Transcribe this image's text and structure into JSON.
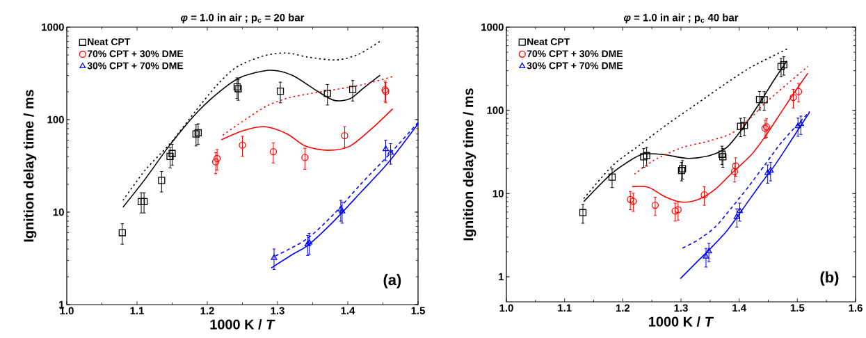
{
  "chart_data": [
    {
      "type": "scatter",
      "title": "*φ*  = 1.0 in air ; p$_{c}$ = 20 bar",
      "xlabel": "1000 K / *T*",
      "ylabel": "Ignition delay time / ms",
      "log": "y",
      "legend": "top left",
      "grid": false,
      "xlim": [
        1.0,
        1.5
      ],
      "ylim": [
        1,
        1000
      ],
      "xticks": [
        {
          "value": 1.0,
          "label": "1.0"
        },
        {
          "value": 1.1,
          "label": "1.1"
        },
        {
          "value": 1.2,
          "label": "1.2"
        },
        {
          "value": 1.3,
          "label": "1.3"
        },
        {
          "value": 1.4,
          "label": "1.4"
        },
        {
          "value": 1.5,
          "label": "1.5"
        }
      ],
      "yticks": [
        1,
        10,
        100,
        1000
      ],
      "annotations": [
        "(a)"
      ],
      "series": [
        {
          "name": "Neat CPT",
          "color": "#000000",
          "marker": "square",
          "x": [
            1.079,
            1.106,
            1.11,
            1.135,
            1.147,
            1.15,
            1.184,
            1.187,
            1.2425,
            1.244,
            1.304,
            1.371,
            1.407
          ],
          "values": [
            6,
            13,
            13,
            22,
            40,
            43,
            70,
            72,
            226,
            216,
            203,
            192,
            212
          ],
          "errors": [
            1.5,
            3.2,
            3.2,
            5.5,
            10,
            11,
            18,
            18,
            57,
            54,
            51,
            48,
            53
          ]
        },
        {
          "name": "70% CPT + 30% DME",
          "color": "#ff0000",
          "marker": "circle",
          "x": [
            1.212,
            1.214,
            1.25,
            1.294,
            1.339,
            1.3955,
            1.453,
            1.454
          ],
          "values": [
            35,
            38,
            53,
            45,
            39,
            67,
            210,
            202
          ],
          "errors": [
            9,
            9.5,
            13,
            11,
            10,
            17,
            52,
            50
          ]
        },
        {
          "name": "30% CPT + 70% DME",
          "color": "#0000ff",
          "marker": "triangle",
          "x": [
            1.295,
            1.343,
            1.345,
            1.39,
            1.392,
            1.454,
            1.461
          ],
          "values": [
            3.2,
            4.5,
            4.7,
            10.7,
            10.2,
            48,
            44
          ],
          "errors": [
            0.8,
            1.1,
            1.2,
            2.7,
            2.6,
            12,
            11
          ]
        },
        {
          "type": "line",
          "line_style": "solid",
          "color": "#000000",
          "x": [
            1.08,
            1.112,
            1.147,
            1.187,
            1.222,
            1.25,
            1.289,
            1.321,
            1.352,
            1.38,
            1.403,
            1.423,
            1.446
          ],
          "values": [
            11.3,
            23,
            53.5,
            123,
            214,
            292,
            342,
            302,
            214,
            162,
            168,
            221,
            302
          ]
        },
        {
          "type": "line",
          "line_style": "dotted",
          "color": "#000000",
          "x": [
            1.08,
            1.112,
            1.147,
            1.183,
            1.214,
            1.242,
            1.281,
            1.313,
            1.344,
            1.384,
            1.415,
            1.446
          ],
          "values": [
            13.4,
            28.7,
            55,
            123,
            237,
            371,
            490,
            525,
            473,
            442,
            507,
            702
          ]
        },
        {
          "type": "line",
          "line_style": "solid",
          "color": "#ff0000",
          "x": [
            1.22,
            1.25,
            1.281,
            1.313,
            1.34,
            1.372,
            1.403,
            1.435,
            1.464
          ],
          "values": [
            60.6,
            75.6,
            84,
            70.5,
            51.7,
            46.6,
            51.7,
            81,
            131
          ]
        },
        {
          "type": "line",
          "line_style": "dotted",
          "color": "#ff0000",
          "x": [
            1.222,
            1.254,
            1.285,
            1.317,
            1.348,
            1.38,
            1.419,
            1.464
          ],
          "values": [
            68,
            100,
            141,
            173,
            192,
            210,
            237,
            292
          ]
        },
        {
          "type": "line",
          "line_style": "solid",
          "color": "#0000ff",
          "x": [
            1.291,
            1.321,
            1.344,
            1.38,
            1.419,
            1.459,
            1.5
          ],
          "values": [
            2.49,
            3.48,
            4.43,
            7.97,
            16.5,
            35.3,
            90
          ]
        },
        {
          "type": "line",
          "line_style": "dashed",
          "color": "#0000ff",
          "x": [
            1.297,
            1.341,
            1.38,
            1.419,
            1.459,
            1.5
          ],
          "values": [
            3.36,
            5.08,
            9.5,
            20.3,
            42,
            93
          ]
        }
      ]
    },
    {
      "type": "scatter",
      "title": "*φ*  = 1.0 in air ; p$_{c}$ 40 bar",
      "xlabel": "1000 K / *T*",
      "ylabel": "Ignition delay time / ms",
      "log": "y",
      "legend": "top left",
      "grid": false,
      "xlim": [
        1.0,
        1.6
      ],
      "ylim": [
        0.5,
        1000
      ],
      "xticks": [
        {
          "value": 1.0,
          "label": "1.0"
        },
        {
          "value": 1.1,
          "label": "1.1"
        },
        {
          "value": 1.2,
          "label": "1.2"
        },
        {
          "value": 1.3,
          "label": "1.3"
        },
        {
          "value": 1.4,
          "label": "1.4"
        },
        {
          "value": 1.5,
          "label": "1.5"
        },
        {
          "value": 1.6,
          "label": "1.6"
        }
      ],
      "yticks": [
        1,
        10,
        100,
        1000
      ],
      "annotations": [
        "(b)"
      ],
      "series": [
        {
          "name": "Neat CPT",
          "color": "#000000",
          "marker": "square",
          "x": [
            1.1315,
            1.1816,
            1.236,
            1.241,
            1.301,
            1.3026,
            1.3705,
            1.372,
            1.4025,
            1.409,
            1.435,
            1.443,
            1.472,
            1.4766
          ],
          "values": [
            5.9,
            15.8,
            27.7,
            28.6,
            18.9,
            19.9,
            29.7,
            27.7,
            64.3,
            65.8,
            135,
            134,
            337,
            353
          ],
          "errors": [
            1.5,
            4,
            7,
            7.2,
            4.7,
            5,
            7.4,
            7,
            16,
            16,
            34,
            34,
            84,
            88
          ]
        },
        {
          "name": "70% CPT + 30% DME",
          "color": "#ff0000",
          "marker": "circle",
          "x": [
            1.213,
            1.218,
            1.2557,
            1.29,
            1.295,
            1.34,
            1.392,
            1.394,
            1.4445,
            1.447,
            1.493,
            1.502
          ],
          "values": [
            8.5,
            8.1,
            7.25,
            6.17,
            6.4,
            9.65,
            18.4,
            21.5,
            60.9,
            63.3,
            143,
            168
          ],
          "errors": [
            2.1,
            2,
            1.8,
            1.5,
            1.6,
            2.4,
            4.6,
            5.4,
            15,
            16,
            36,
            42
          ]
        },
        {
          "name": "30% CPT + 70% DME",
          "color": "#0000ff",
          "marker": "triangle",
          "x": [
            1.343,
            1.348,
            1.396,
            1.401,
            1.449,
            1.454,
            1.501,
            1.506
          ],
          "values": [
            1.75,
            2.02,
            5.25,
            6.17,
            17.7,
            18.9,
            64.7,
            68.4
          ],
          "errors": [
            0.44,
            0.5,
            1.3,
            1.5,
            4.4,
            4.7,
            16,
            17
          ]
        },
        {
          "type": "line",
          "line_style": "solid",
          "color": "#000000",
          "x": [
            1.133,
            1.158,
            1.182,
            1.2055,
            1.234,
            1.272,
            1.311,
            1.349,
            1.378,
            1.406,
            1.435,
            1.459,
            1.482
          ],
          "values": [
            8.0,
            12.2,
            17.7,
            23.2,
            29.7,
            29.3,
            26.5,
            28.6,
            35.5,
            60.9,
            122,
            226,
            393
          ]
        },
        {
          "type": "line",
          "line_style": "dotted",
          "color": "#000000",
          "x": [
            1.133,
            1.182,
            1.229,
            1.277,
            1.325,
            1.373,
            1.421,
            1.483
          ],
          "values": [
            8.7,
            21.5,
            38.3,
            68.4,
            117,
            201,
            332,
            548
          ]
        },
        {
          "type": "line",
          "line_style": "solid",
          "color": "#ff0000",
          "x": [
            1.216,
            1.244,
            1.272,
            1.301,
            1.33,
            1.3585,
            1.387,
            1.421,
            1.4445,
            1.473,
            1.492,
            1.518
          ],
          "values": [
            12.1,
            11.9,
            9.2,
            7.9,
            8.5,
            11.2,
            17.5,
            29.3,
            48.3,
            96.7,
            153,
            280
          ]
        },
        {
          "type": "line",
          "line_style": "dotted",
          "color": "#ff0000",
          "x": [
            1.22,
            1.2535,
            1.301,
            1.349,
            1.387,
            1.421,
            1.4445,
            1.483,
            1.518
          ],
          "values": [
            17.1,
            25.1,
            35.5,
            43,
            53,
            82.8,
            122,
            209,
            337
          ]
        },
        {
          "type": "line",
          "line_style": "solid",
          "color": "#0000ff",
          "x": [
            1.299,
            1.325,
            1.349,
            1.378,
            1.406,
            1.435,
            1.4637,
            1.492,
            1.521
          ],
          "values": [
            0.95,
            1.45,
            2.13,
            3.51,
            6.5,
            12.5,
            23.2,
            46.5,
            95
          ]
        },
        {
          "type": "line",
          "line_style": "dashed",
          "color": "#0000ff",
          "x": [
            1.3026,
            1.33,
            1.3585,
            1.387,
            1.416,
            1.4445,
            1.473,
            1.521
          ],
          "values": [
            2.21,
            2.79,
            3.95,
            6.76,
            12.1,
            22.3,
            41.4,
            96.7
          ]
        }
      ]
    }
  ]
}
